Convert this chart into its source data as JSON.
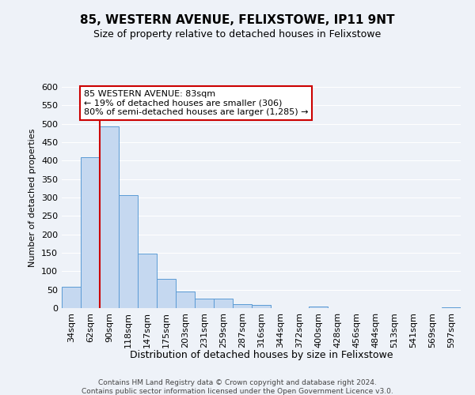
{
  "title": "85, WESTERN AVENUE, FELIXSTOWE, IP11 9NT",
  "subtitle": "Size of property relative to detached houses in Felixstowe",
  "xlabel": "Distribution of detached houses by size in Felixstowe",
  "ylabel": "Number of detached properties",
  "bar_labels": [
    "34sqm",
    "62sqm",
    "90sqm",
    "118sqm",
    "147sqm",
    "175sqm",
    "203sqm",
    "231sqm",
    "259sqm",
    "287sqm",
    "316sqm",
    "344sqm",
    "372sqm",
    "400sqm",
    "428sqm",
    "456sqm",
    "484sqm",
    "513sqm",
    "541sqm",
    "569sqm",
    "597sqm"
  ],
  "bar_values": [
    57,
    410,
    493,
    307,
    148,
    80,
    44,
    25,
    25,
    10,
    8,
    0,
    0,
    5,
    0,
    0,
    0,
    0,
    0,
    0,
    3
  ],
  "bar_color": "#c5d8f0",
  "bar_edge_color": "#5b9bd5",
  "vline_color": "#cc0000",
  "ylim": [
    0,
    600
  ],
  "yticks": [
    0,
    50,
    100,
    150,
    200,
    250,
    300,
    350,
    400,
    450,
    500,
    550,
    600
  ],
  "annotation_title": "85 WESTERN AVENUE: 83sqm",
  "annotation_line1": "← 19% of detached houses are smaller (306)",
  "annotation_line2": "80% of semi-detached houses are larger (1,285) →",
  "annotation_box_color": "#ffffff",
  "annotation_box_edge": "#cc0000",
  "footer1": "Contains HM Land Registry data © Crown copyright and database right 2024.",
  "footer2": "Contains public sector information licensed under the Open Government Licence v3.0.",
  "background_color": "#eef2f8",
  "grid_color": "#ffffff"
}
